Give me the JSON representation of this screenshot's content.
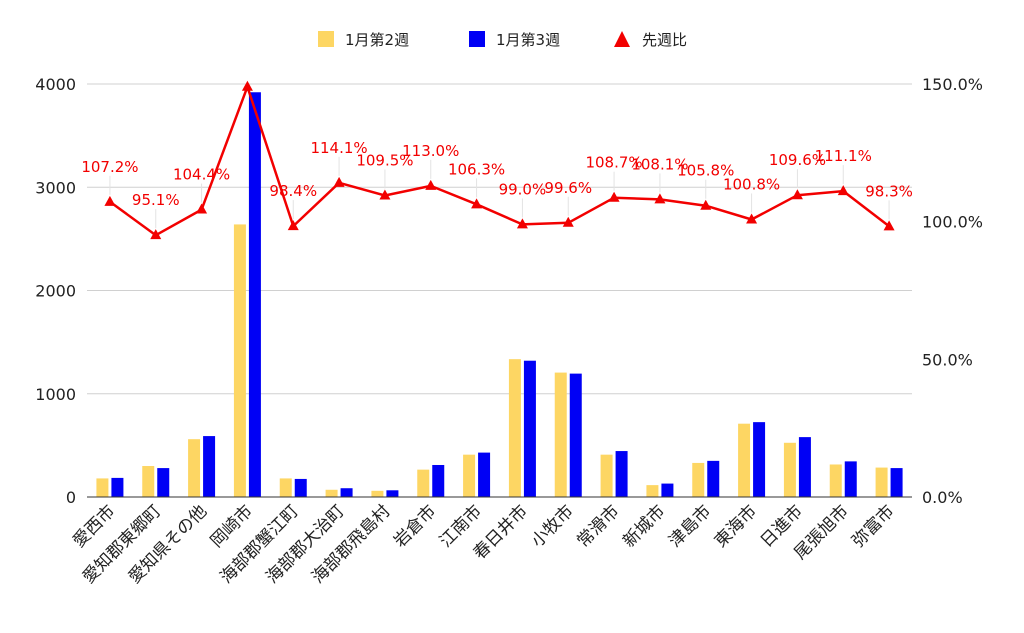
{
  "chart_data": {
    "type": "bar",
    "categories": [
      "愛西市",
      "愛知郡東郷町",
      "愛知県その他",
      "岡崎市",
      "海部郡蟹江町",
      "海部郡大治町",
      "海部郡飛島村",
      "岩倉市",
      "江南市",
      "春日井市",
      "小牧市",
      "常滑市",
      "新城市",
      "津島市",
      "東海市",
      "日進市",
      "尾張旭市",
      "弥富市"
    ],
    "series": [
      {
        "name": "1月第2週",
        "type": "bar",
        "axis": "left",
        "color": "#FDD663",
        "values": [
          180,
          300,
          560,
          2640,
          180,
          70,
          60,
          265,
          410,
          1335,
          1205,
          410,
          115,
          330,
          710,
          525,
          315,
          285
        ]
      },
      {
        "name": "1月第3週",
        "type": "bar",
        "axis": "left",
        "color": "#0000F5",
        "values": [
          185,
          280,
          590,
          3920,
          175,
          85,
          65,
          310,
          430,
          1320,
          1195,
          445,
          130,
          350,
          725,
          580,
          345,
          280
        ]
      },
      {
        "name": "先週比",
        "type": "line",
        "axis": "right",
        "color": "#F20000",
        "marker": "triangle",
        "values": [
          107.2,
          95.1,
          104.4,
          149.0,
          98.4,
          114.1,
          109.5,
          113.0,
          106.3,
          99.0,
          99.6,
          108.7,
          108.1,
          105.8,
          100.8,
          109.6,
          111.1,
          98.3
        ],
        "labels": [
          "107.2%",
          "95.1%",
          "104.4%",
          "",
          "98.4%",
          "114.1%",
          "109.5%",
          "113.0%",
          "106.3%",
          "99.0%",
          "99.6%",
          "108.7%",
          "108.1%",
          "105.8%",
          "100.8%",
          "109.6%",
          "111.1%",
          "98.3%"
        ]
      }
    ],
    "ylim": [
      0,
      4000
    ],
    "y_ticks": [
      "0",
      "1000",
      "2000",
      "3000",
      "4000"
    ],
    "y2lim": [
      0,
      150
    ],
    "y2_ticks": [
      "0.0%",
      "50.0%",
      "100.0%",
      "150.0%"
    ],
    "grid": true,
    "legend_position": "top",
    "title": "",
    "xlabel": "",
    "ylabel": ""
  }
}
